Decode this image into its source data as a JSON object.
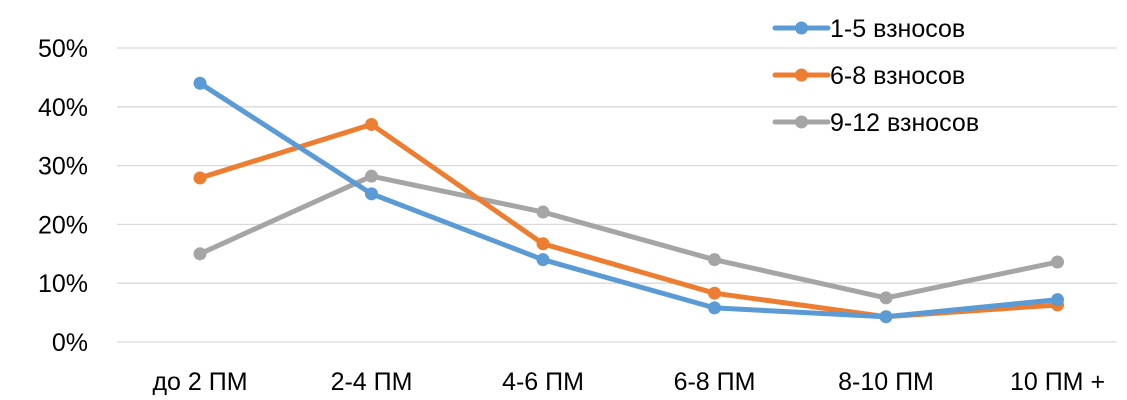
{
  "chart_data": {
    "type": "line",
    "categories": [
      "до 2 ПМ",
      "2-4 ПМ",
      "4-6 ПМ",
      "6-8 ПМ",
      "8-10 ПМ",
      "10 ПМ +"
    ],
    "y_ticks": [
      "0%",
      "10%",
      "20%",
      "30%",
      "40%",
      "50%"
    ],
    "ylim": [
      0,
      50
    ],
    "y_unit": "%",
    "grid": "horizontal",
    "legend_position": "top-right",
    "series": [
      {
        "name": "1-5 взносов",
        "color": "#5b9bd5",
        "values": [
          44,
          25.2,
          14,
          5.8,
          4.3,
          7.2
        ]
      },
      {
        "name": "6-8 взносов",
        "color": "#ed7d31",
        "values": [
          27.9,
          37,
          16.7,
          8.3,
          4.3,
          6.3
        ]
      },
      {
        "name": "9-12 взносов",
        "color": "#a5a5a5",
        "values": [
          15,
          28.2,
          22.1,
          14,
          7.5,
          13.6
        ]
      }
    ]
  }
}
